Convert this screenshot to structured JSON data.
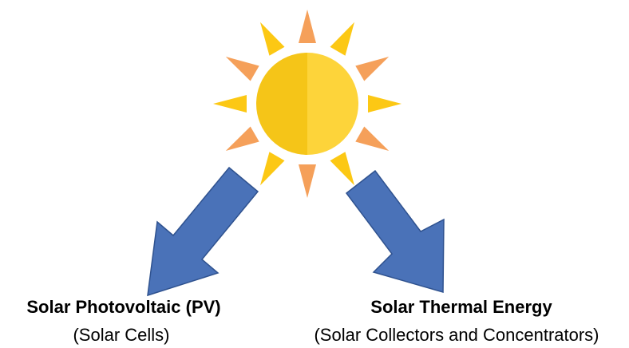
{
  "labels": [
    {
      "title": "Solar Photovoltaic (PV)",
      "subtitle": "(Solar Cells)"
    },
    {
      "title": "Solar Thermal Energy",
      "subtitle": "(Solar Collectors and Concentrators)"
    }
  ]
}
